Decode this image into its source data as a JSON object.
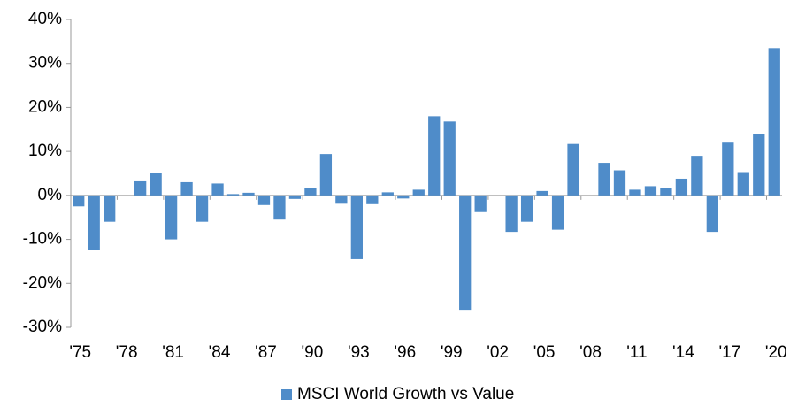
{
  "chart_data": {
    "type": "bar",
    "categories": [
      "'75",
      null,
      null,
      "'78",
      null,
      null,
      "'81",
      null,
      null,
      "'84",
      null,
      null,
      "'87",
      null,
      null,
      "'90",
      null,
      null,
      "'93",
      null,
      null,
      "'96",
      null,
      null,
      "'99",
      null,
      null,
      "'02",
      null,
      null,
      "'05",
      null,
      null,
      "'08",
      null,
      null,
      "'11",
      null,
      null,
      "'14",
      null,
      null,
      "'17",
      null,
      null,
      "'20"
    ],
    "series": [
      {
        "name": "MSCI World Growth vs Value",
        "color": "#4f8cc9",
        "values": [
          -2.5,
          -12.5,
          -6,
          0,
          3.2,
          5,
          -10,
          3,
          -6,
          2.7,
          0.3,
          0.6,
          -2.2,
          -5.5,
          -0.8,
          1.6,
          9.4,
          -1.7,
          -14.5,
          -1.8,
          0.7,
          -0.7,
          1.3,
          18,
          16.8,
          -26,
          -3.8,
          0,
          -8.3,
          -6,
          1,
          -7.8,
          11.7,
          0,
          7.4,
          5.7,
          1.3,
          2.1,
          1.7,
          3.8,
          9,
          -8.3,
          12,
          5.3,
          13.9,
          33.5
        ]
      }
    ],
    "ylim": [
      -30,
      40
    ],
    "yticks": [
      {
        "value": -30,
        "label": "-30%"
      },
      {
        "value": -20,
        "label": "-20%"
      },
      {
        "value": -10,
        "label": "-10%"
      },
      {
        "value": 0,
        "label": "0%"
      },
      {
        "value": 10,
        "label": "10%"
      },
      {
        "value": 20,
        "label": "20%"
      },
      {
        "value": 30,
        "label": "30%"
      },
      {
        "value": 40,
        "label": "40%"
      }
    ],
    "legend": "bottom"
  }
}
